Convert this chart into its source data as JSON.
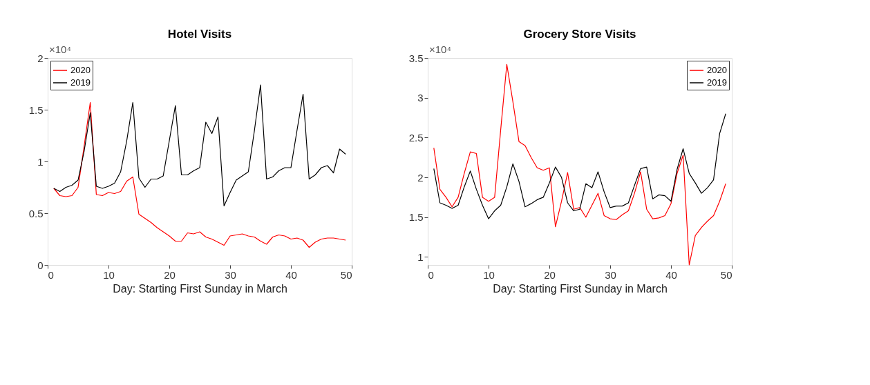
{
  "chart_data": [
    {
      "type": "line",
      "title": "Hotel Visits",
      "xlabel": "Day: Starting First Sunday in March",
      "annotations": [
        "×10⁴"
      ],
      "xlim": [
        0,
        50
      ],
      "xticks": [
        0,
        10,
        20,
        30,
        40,
        50
      ],
      "ylim": [
        0,
        2
      ],
      "yticks": [
        0,
        0.5,
        1,
        1.5,
        2
      ],
      "grid": false,
      "legend": "top left",
      "line_style": "solid",
      "x": [
        1,
        2,
        3,
        4,
        5,
        6,
        7,
        8,
        9,
        10,
        11,
        12,
        13,
        14,
        15,
        16,
        17,
        18,
        19,
        20,
        21,
        22,
        23,
        24,
        25,
        26,
        27,
        28,
        29,
        30,
        31,
        32,
        33,
        34,
        35,
        36,
        37,
        38,
        39,
        40,
        41,
        42,
        43,
        44,
        45,
        46,
        47,
        48,
        49
      ],
      "series": [
        {
          "name": "2020",
          "color": "#ff0000",
          "values": [
            0.74,
            0.67,
            0.66,
            0.67,
            0.75,
            1.15,
            1.57,
            0.68,
            0.67,
            0.7,
            0.69,
            0.71,
            0.81,
            0.85,
            0.49,
            0.45,
            0.41,
            0.36,
            0.32,
            0.28,
            0.23,
            0.23,
            0.31,
            0.3,
            0.32,
            0.27,
            0.25,
            0.22,
            0.19,
            0.28,
            0.29,
            0.3,
            0.28,
            0.27,
            0.23,
            0.2,
            0.27,
            0.29,
            0.28,
            0.25,
            0.26,
            0.24,
            0.17,
            0.22,
            0.25,
            0.26,
            0.26,
            0.25,
            0.24
          ]
        },
        {
          "name": "2019",
          "color": "#000000",
          "values": [
            0.74,
            0.71,
            0.75,
            0.77,
            0.82,
            1.1,
            1.47,
            0.76,
            0.74,
            0.76,
            0.79,
            0.9,
            1.2,
            1.57,
            0.84,
            0.75,
            0.83,
            0.83,
            0.86,
            1.2,
            1.54,
            0.87,
            0.87,
            0.91,
            0.94,
            1.38,
            1.27,
            1.43,
            0.57,
            0.7,
            0.82,
            0.86,
            0.9,
            1.3,
            1.74,
            0.83,
            0.85,
            0.91,
            0.94,
            0.94,
            1.3,
            1.65,
            0.83,
            0.87,
            0.94,
            0.96,
            0.89,
            1.12,
            1.07
          ]
        }
      ]
    },
    {
      "type": "line",
      "title": "Grocery Store Visits",
      "xlabel": "Day: Starting First Sunday in March",
      "annotations": [
        "×10⁴"
      ],
      "xlim": [
        0,
        50
      ],
      "xticks": [
        0,
        10,
        20,
        30,
        40,
        50
      ],
      "ylim": [
        0.9,
        3.5
      ],
      "yticks": [
        1,
        1.5,
        2,
        2.5,
        3,
        3.5
      ],
      "grid": false,
      "legend": "top right",
      "line_style": "solid",
      "x": [
        1,
        2,
        3,
        4,
        5,
        6,
        7,
        8,
        9,
        10,
        11,
        12,
        13,
        14,
        15,
        16,
        17,
        18,
        19,
        20,
        21,
        22,
        23,
        24,
        25,
        26,
        27,
        28,
        29,
        30,
        31,
        32,
        33,
        34,
        35,
        36,
        37,
        38,
        39,
        40,
        41,
        42,
        43,
        44,
        45,
        46,
        47,
        48,
        49
      ],
      "series": [
        {
          "name": "2020",
          "color": "#ff0000",
          "values": [
            2.37,
            1.85,
            1.75,
            1.63,
            1.75,
            2.05,
            2.32,
            2.3,
            1.75,
            1.7,
            1.75,
            2.6,
            3.42,
            2.95,
            2.45,
            2.4,
            2.25,
            2.12,
            2.09,
            2.12,
            1.38,
            1.7,
            2.06,
            1.6,
            1.62,
            1.5,
            1.65,
            1.8,
            1.52,
            1.48,
            1.47,
            1.53,
            1.58,
            1.8,
            2.07,
            1.6,
            1.48,
            1.49,
            1.52,
            1.67,
            2.05,
            2.28,
            0.9,
            1.27,
            1.37,
            1.45,
            1.52,
            1.7,
            1.92
          ]
        },
        {
          "name": "2019",
          "color": "#000000",
          "values": [
            2.11,
            1.68,
            1.65,
            1.61,
            1.65,
            1.88,
            2.08,
            1.85,
            1.65,
            1.48,
            1.58,
            1.65,
            1.88,
            2.17,
            1.95,
            1.63,
            1.67,
            1.72,
            1.75,
            1.93,
            2.13,
            2.0,
            1.68,
            1.58,
            1.6,
            1.92,
            1.87,
            2.07,
            1.82,
            1.62,
            1.64,
            1.64,
            1.68,
            1.9,
            2.11,
            2.13,
            1.73,
            1.78,
            1.77,
            1.7,
            2.1,
            2.36,
            2.05,
            1.93,
            1.8,
            1.87,
            1.97,
            2.55,
            2.8
          ]
        }
      ]
    }
  ]
}
